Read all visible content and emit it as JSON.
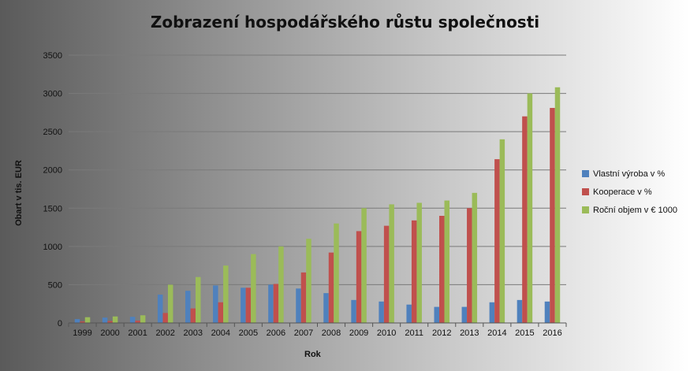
{
  "chart_data": {
    "type": "bar",
    "title": "Zobrazení hospodářského růstu společnosti",
    "xlabel": "Rok",
    "ylabel": "Obart v tis. EUR",
    "ylim": [
      0,
      3500
    ],
    "yticks": [
      "0",
      "500",
      "1000",
      "1500",
      "2000",
      "2500",
      "3000",
      "3500"
    ],
    "grid": true,
    "legend_position": "right",
    "categories": [
      "1999",
      "2000",
      "2001",
      "2002",
      "2003",
      "2004",
      "2005",
      "2006",
      "2007",
      "2008",
      "2009",
      "2010",
      "2011",
      "2012",
      "2013",
      "2014",
      "2015",
      "2016"
    ],
    "series": [
      {
        "name": "Vlastní výroba v %",
        "color": "#4f81bd",
        "values": [
          50,
          70,
          80,
          370,
          420,
          490,
          460,
          500,
          450,
          390,
          300,
          280,
          240,
          210,
          210,
          270,
          300,
          280
        ]
      },
      {
        "name": "Kooperace v %",
        "color": "#c0504d",
        "values": [
          20,
          25,
          30,
          130,
          190,
          270,
          460,
          510,
          660,
          920,
          1200,
          1270,
          1340,
          1400,
          1500,
          2140,
          2700,
          2810
        ]
      },
      {
        "name": "Roční objem v € 1000",
        "color": "#9bbb59",
        "values": [
          75,
          85,
          100,
          500,
          600,
          750,
          900,
          1000,
          1100,
          1300,
          1500,
          1550,
          1570,
          1600,
          1700,
          2400,
          3000,
          3080
        ]
      }
    ]
  }
}
